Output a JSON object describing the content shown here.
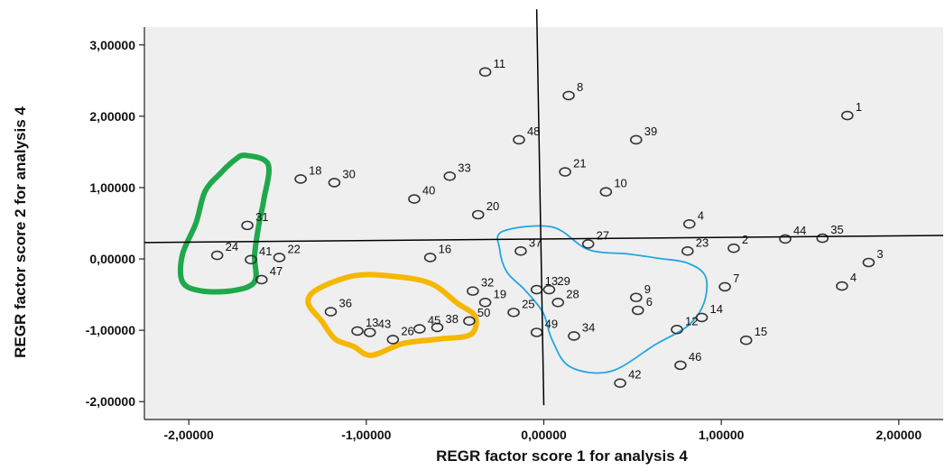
{
  "chart_data": {
    "type": "scatter",
    "title": "",
    "xlabel": "REGR factor score   1 for analysis 4",
    "ylabel": "REGR factor score   2 for analysis 4",
    "xlim": [
      -2.25,
      2.25
    ],
    "ylim": [
      -2.25,
      3.25
    ],
    "x_ticks": [
      -2,
      -1,
      0,
      1,
      2
    ],
    "x_tick_labels": [
      "-2,00000",
      "-1,00000",
      "0,00000",
      "1,00000",
      "2,00000"
    ],
    "y_ticks": [
      -2,
      -1,
      0,
      1,
      2,
      3
    ],
    "y_tick_labels": [
      "-2,00000",
      "-1,00000",
      "0,00000",
      "1,00000",
      "2,00000",
      "3,00000"
    ],
    "grid": false,
    "background": "#efefef",
    "marker_color": "#333333",
    "points": [
      {
        "label": "1",
        "x": 1.71,
        "y": 2.01
      },
      {
        "label": "3",
        "x": 1.83,
        "y": -0.05
      },
      {
        "label": "4",
        "x": 1.68,
        "y": -0.38
      },
      {
        "label": "35",
        "x": 1.57,
        "y": 0.29
      },
      {
        "label": "44",
        "x": 1.36,
        "y": 0.28
      },
      {
        "label": "2",
        "x": 1.07,
        "y": 0.15
      },
      {
        "label": "23",
        "x": 0.81,
        "y": 0.11
      },
      {
        "label": "4",
        "x": 0.82,
        "y": 0.49
      },
      {
        "label": "7",
        "x": 1.02,
        "y": -0.39
      },
      {
        "label": "14",
        "x": 0.89,
        "y": -0.82
      },
      {
        "label": "15",
        "x": 1.14,
        "y": -1.14
      },
      {
        "label": "12",
        "x": 0.75,
        "y": -0.99
      },
      {
        "label": "46",
        "x": 0.77,
        "y": -1.49
      },
      {
        "label": "42",
        "x": 0.43,
        "y": -1.74
      },
      {
        "label": "9",
        "x": 0.52,
        "y": -0.54
      },
      {
        "label": "6",
        "x": 0.53,
        "y": -0.72
      },
      {
        "label": "34",
        "x": 0.17,
        "y": -1.08
      },
      {
        "label": "49",
        "x": -0.04,
        "y": -1.03
      },
      {
        "label": "27",
        "x": 0.25,
        "y": 0.21
      },
      {
        "label": "37",
        "x": -0.13,
        "y": 0.11
      },
      {
        "label": "13",
        "x": -0.04,
        "y": -0.43
      },
      {
        "label": "29",
        "x": 0.03,
        "y": -0.43
      },
      {
        "label": "28",
        "x": 0.08,
        "y": -0.61
      },
      {
        "label": "32",
        "x": -0.4,
        "y": -0.45
      },
      {
        "label": "25",
        "x": -0.17,
        "y": -0.75
      },
      {
        "label": "19",
        "x": -0.33,
        "y": -0.61
      },
      {
        "label": "50",
        "x": -0.42,
        "y": -0.87
      },
      {
        "label": "38",
        "x": -0.6,
        "y": -0.96
      },
      {
        "label": "45",
        "x": -0.7,
        "y": -0.98
      },
      {
        "label": "26",
        "x": -0.85,
        "y": -1.13
      },
      {
        "label": "13",
        "x": -1.05,
        "y": -1.01
      },
      {
        "label": "43",
        "x": -0.98,
        "y": -1.03
      },
      {
        "label": "36",
        "x": -1.2,
        "y": -0.74
      },
      {
        "label": "11",
        "x": -0.33,
        "y": 2.62
      },
      {
        "label": "8",
        "x": 0.14,
        "y": 2.29
      },
      {
        "label": "48",
        "x": -0.14,
        "y": 1.67
      },
      {
        "label": "39",
        "x": 0.52,
        "y": 1.67
      },
      {
        "label": "21",
        "x": 0.12,
        "y": 1.22
      },
      {
        "label": "33",
        "x": -0.53,
        "y": 1.16
      },
      {
        "label": "10",
        "x": 0.35,
        "y": 0.94
      },
      {
        "label": "40",
        "x": -0.73,
        "y": 0.84
      },
      {
        "label": "20",
        "x": -0.37,
        "y": 0.62
      },
      {
        "label": "16",
        "x": -0.64,
        "y": 0.02
      },
      {
        "label": "18",
        "x": -1.37,
        "y": 1.12
      },
      {
        "label": "30",
        "x": -1.18,
        "y": 1.07
      },
      {
        "label": "31",
        "x": -1.67,
        "y": 0.47
      },
      {
        "label": "24",
        "x": -1.84,
        "y": 0.05
      },
      {
        "label": "22",
        "x": -1.49,
        "y": 0.02
      },
      {
        "label": "41",
        "x": -1.65,
        "y": -0.01
      },
      {
        "label": "47",
        "x": -1.59,
        "y": -0.29
      }
    ],
    "reference_lines": [
      {
        "from": [
          -0.04,
          3.5
        ],
        "to": [
          0.0,
          -2.05
        ]
      },
      {
        "from": [
          -2.25,
          0.23
        ],
        "to": [
          2.25,
          0.33
        ]
      }
    ],
    "annotations": [
      {
        "shape": "freehand-loop",
        "color": "#1fa84c",
        "center": [
          -1.68,
          0.25
        ]
      },
      {
        "shape": "freehand-loop",
        "color": "#f5b700",
        "center": [
          -0.87,
          -0.87
        ]
      },
      {
        "shape": "freehand-loop",
        "color": "#22a6e0",
        "center": [
          0.25,
          -0.5
        ]
      }
    ]
  }
}
